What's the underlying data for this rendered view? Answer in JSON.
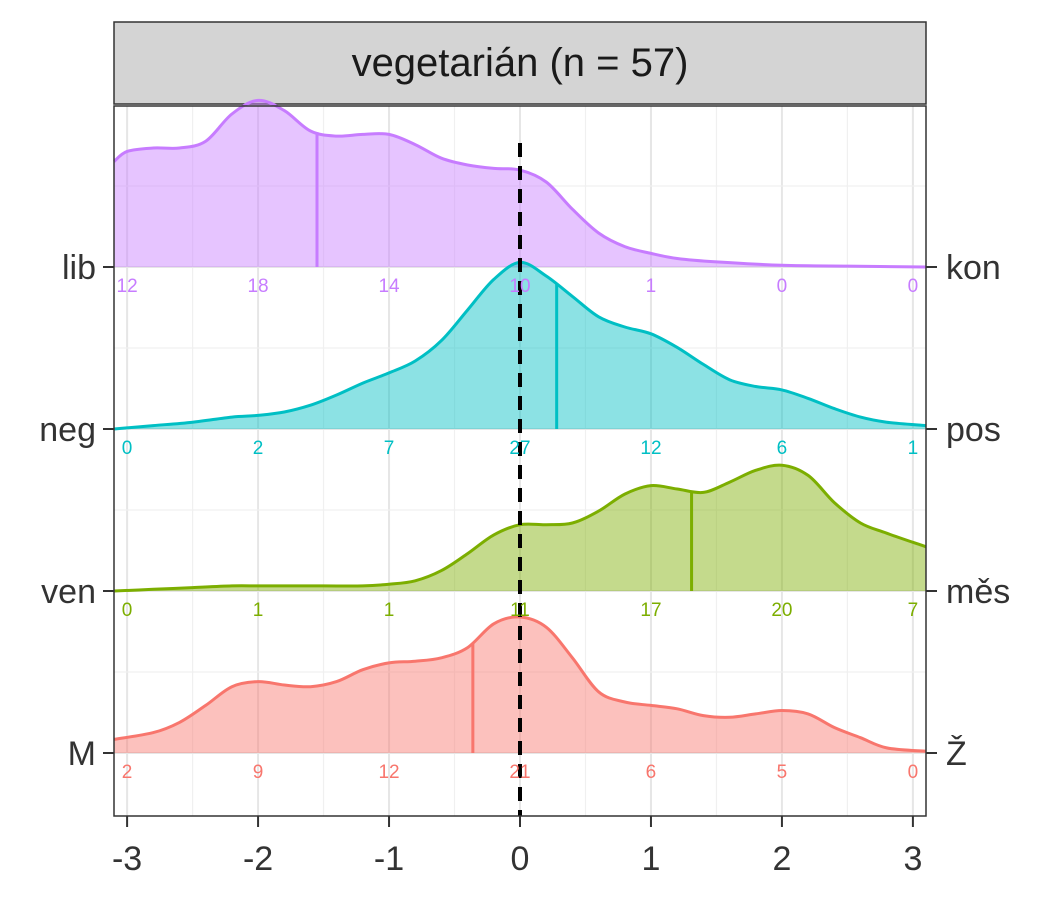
{
  "chart_data": {
    "type": "ridgeline",
    "title": "vegetarián (n = 57)",
    "xlim": [
      -3.1,
      3.1
    ],
    "x_ticks": [
      "-3",
      "-2",
      "-1",
      "0",
      "1",
      "2",
      "3"
    ],
    "x_tick_values": [
      -3,
      -2,
      -1,
      0,
      1,
      2,
      3
    ],
    "reference_line": 0,
    "grid": true,
    "count_positions": [
      -3,
      -2,
      -1,
      0,
      1,
      2,
      3
    ],
    "rows": [
      {
        "left": "lib",
        "right": "kon",
        "color": "#C77CFF",
        "counts": [
          "12",
          "18",
          "14",
          "10",
          "1",
          "0",
          "0"
        ],
        "mean": -1.55,
        "density": [
          [
            -3.1,
            0.62
          ],
          [
            -3.0,
            0.68
          ],
          [
            -2.8,
            0.7
          ],
          [
            -2.6,
            0.7
          ],
          [
            -2.4,
            0.74
          ],
          [
            -2.2,
            0.9
          ],
          [
            -2.0,
            0.98
          ],
          [
            -1.8,
            0.92
          ],
          [
            -1.6,
            0.8
          ],
          [
            -1.4,
            0.77
          ],
          [
            -1.2,
            0.78
          ],
          [
            -1.0,
            0.78
          ],
          [
            -0.8,
            0.72
          ],
          [
            -0.6,
            0.64
          ],
          [
            -0.4,
            0.6
          ],
          [
            -0.2,
            0.58
          ],
          [
            0.0,
            0.57
          ],
          [
            0.2,
            0.5
          ],
          [
            0.4,
            0.34
          ],
          [
            0.6,
            0.2
          ],
          [
            0.8,
            0.12
          ],
          [
            1.0,
            0.08
          ],
          [
            1.2,
            0.05
          ],
          [
            1.5,
            0.03
          ],
          [
            2.0,
            0.01
          ],
          [
            2.5,
            0.005
          ],
          [
            3.1,
            0.0
          ]
        ]
      },
      {
        "left": "neg",
        "right": "pos",
        "color": "#00BFC4",
        "counts": [
          "0",
          "2",
          "7",
          "27",
          "12",
          "6",
          "1"
        ],
        "mean": 0.28,
        "density": [
          [
            -3.1,
            0.0
          ],
          [
            -2.8,
            0.02
          ],
          [
            -2.5,
            0.04
          ],
          [
            -2.2,
            0.07
          ],
          [
            -2.0,
            0.08
          ],
          [
            -1.8,
            0.1
          ],
          [
            -1.6,
            0.14
          ],
          [
            -1.4,
            0.2
          ],
          [
            -1.2,
            0.27
          ],
          [
            -1.0,
            0.33
          ],
          [
            -0.8,
            0.4
          ],
          [
            -0.6,
            0.52
          ],
          [
            -0.4,
            0.7
          ],
          [
            -0.2,
            0.88
          ],
          [
            0.0,
            0.98
          ],
          [
            0.2,
            0.9
          ],
          [
            0.4,
            0.78
          ],
          [
            0.6,
            0.66
          ],
          [
            0.8,
            0.6
          ],
          [
            1.0,
            0.56
          ],
          [
            1.2,
            0.48
          ],
          [
            1.4,
            0.38
          ],
          [
            1.6,
            0.29
          ],
          [
            1.8,
            0.25
          ],
          [
            2.0,
            0.23
          ],
          [
            2.2,
            0.18
          ],
          [
            2.4,
            0.12
          ],
          [
            2.6,
            0.07
          ],
          [
            2.8,
            0.04
          ],
          [
            3.1,
            0.02
          ]
        ]
      },
      {
        "left": "ven",
        "right": "měs",
        "color": "#7CAE00",
        "counts": [
          "0",
          "1",
          "1",
          "11",
          "17",
          "20",
          "7"
        ],
        "mean": 1.31,
        "density": [
          [
            -3.1,
            0.0
          ],
          [
            -2.8,
            0.01
          ],
          [
            -2.5,
            0.02
          ],
          [
            -2.2,
            0.03
          ],
          [
            -2.0,
            0.03
          ],
          [
            -1.8,
            0.03
          ],
          [
            -1.5,
            0.03
          ],
          [
            -1.2,
            0.03
          ],
          [
            -1.0,
            0.04
          ],
          [
            -0.8,
            0.06
          ],
          [
            -0.6,
            0.12
          ],
          [
            -0.4,
            0.22
          ],
          [
            -0.2,
            0.33
          ],
          [
            0.0,
            0.39
          ],
          [
            0.2,
            0.39
          ],
          [
            0.4,
            0.4
          ],
          [
            0.6,
            0.47
          ],
          [
            0.8,
            0.57
          ],
          [
            1.0,
            0.62
          ],
          [
            1.2,
            0.6
          ],
          [
            1.4,
            0.58
          ],
          [
            1.6,
            0.64
          ],
          [
            1.8,
            0.71
          ],
          [
            2.0,
            0.74
          ],
          [
            2.2,
            0.68
          ],
          [
            2.4,
            0.52
          ],
          [
            2.6,
            0.4
          ],
          [
            2.8,
            0.34
          ],
          [
            3.1,
            0.26
          ]
        ]
      },
      {
        "left": "M",
        "right": "Ž",
        "color": "#F8766D",
        "counts": [
          "2",
          "9",
          "12",
          "21",
          "6",
          "5",
          "0"
        ],
        "mean": -0.36,
        "density": [
          [
            -3.1,
            0.08
          ],
          [
            -2.8,
            0.12
          ],
          [
            -2.6,
            0.18
          ],
          [
            -2.4,
            0.28
          ],
          [
            -2.2,
            0.39
          ],
          [
            -2.0,
            0.42
          ],
          [
            -1.8,
            0.4
          ],
          [
            -1.6,
            0.39
          ],
          [
            -1.4,
            0.42
          ],
          [
            -1.2,
            0.49
          ],
          [
            -1.0,
            0.53
          ],
          [
            -0.8,
            0.54
          ],
          [
            -0.6,
            0.56
          ],
          [
            -0.4,
            0.62
          ],
          [
            -0.2,
            0.76
          ],
          [
            0.0,
            0.8
          ],
          [
            0.2,
            0.74
          ],
          [
            0.4,
            0.56
          ],
          [
            0.6,
            0.36
          ],
          [
            0.8,
            0.3
          ],
          [
            1.0,
            0.28
          ],
          [
            1.2,
            0.26
          ],
          [
            1.4,
            0.22
          ],
          [
            1.6,
            0.21
          ],
          [
            1.8,
            0.23
          ],
          [
            2.0,
            0.25
          ],
          [
            2.2,
            0.23
          ],
          [
            2.4,
            0.15
          ],
          [
            2.6,
            0.09
          ],
          [
            2.8,
            0.03
          ],
          [
            3.1,
            0.01
          ]
        ]
      }
    ]
  }
}
